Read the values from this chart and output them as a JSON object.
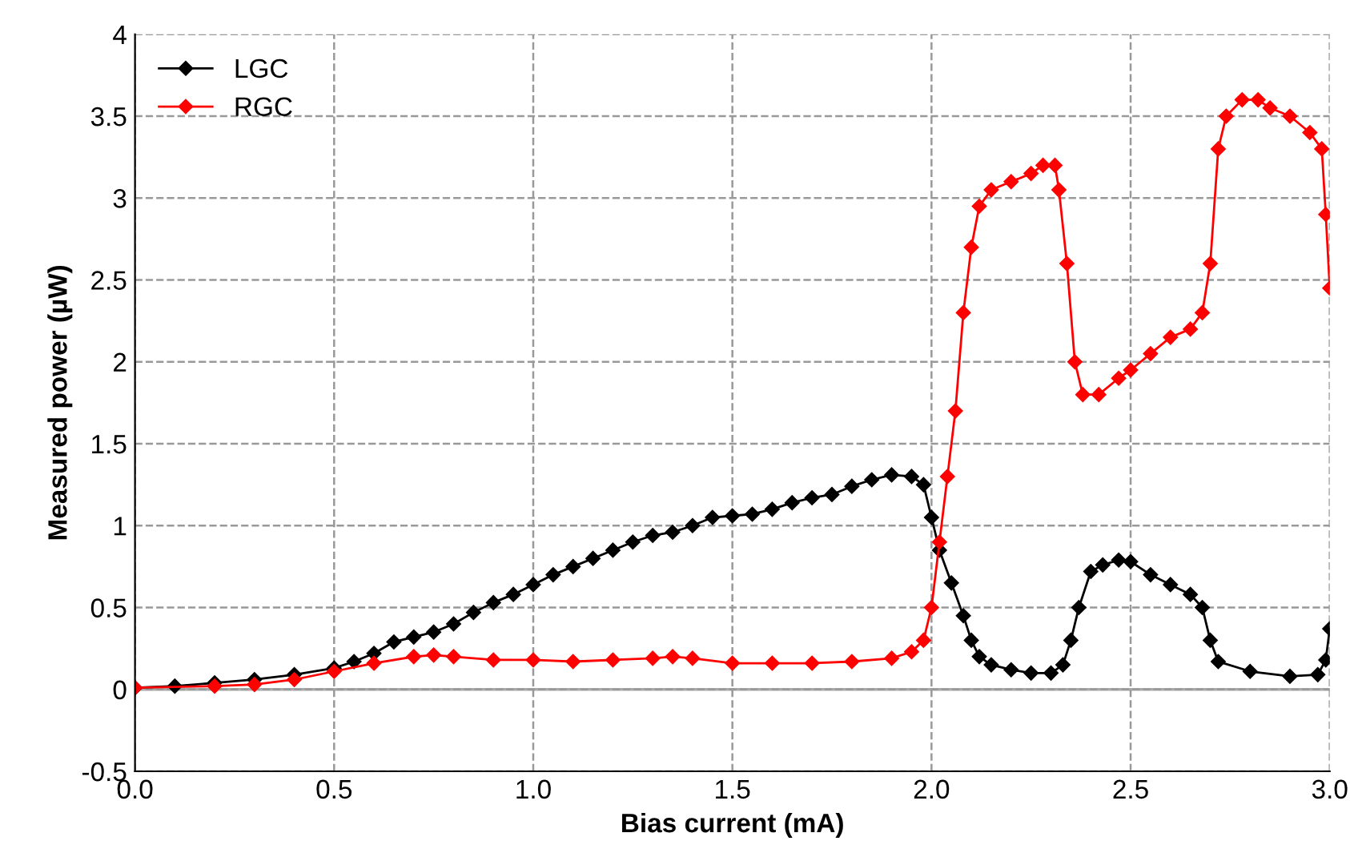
{
  "chart_data": {
    "type": "line",
    "xlabel": "Bias current (mA)",
    "ylabel": "Measured power (µW)",
    "xlim": [
      0,
      3
    ],
    "ylim": [
      -0.5,
      4
    ],
    "xticks": [
      {
        "value": 0,
        "label": "0.0"
      },
      {
        "value": 0.5,
        "label": "0.5"
      },
      {
        "value": 1,
        "label": "1.0"
      },
      {
        "value": 1.5,
        "label": "1.5"
      },
      {
        "value": 2,
        "label": "2.0"
      },
      {
        "value": 2.5,
        "label": "2.5"
      },
      {
        "value": 3,
        "label": "3.0"
      }
    ],
    "yticks": [
      {
        "value": -0.5,
        "label": "-0.5"
      },
      0,
      0.5,
      1,
      1.5,
      2,
      2.5,
      3,
      3.5,
      4
    ],
    "grid": true,
    "legend": "top left",
    "marker": "diamond",
    "line_style": "solid",
    "series": [
      {
        "name": "LGC",
        "color": "#000000",
        "x": [
          0,
          0.1,
          0.2,
          0.3,
          0.4,
          0.5,
          0.55,
          0.6,
          0.65,
          0.7,
          0.75,
          0.8,
          0.85,
          0.9,
          0.95,
          1.0,
          1.05,
          1.1,
          1.15,
          1.2,
          1.25,
          1.3,
          1.35,
          1.4,
          1.45,
          1.5,
          1.55,
          1.6,
          1.65,
          1.7,
          1.75,
          1.8,
          1.85,
          1.9,
          1.95,
          1.98,
          2.0,
          2.02,
          2.05,
          2.08,
          2.1,
          2.12,
          2.15,
          2.2,
          2.25,
          2.3,
          2.33,
          2.35,
          2.37,
          2.4,
          2.43,
          2.47,
          2.5,
          2.55,
          2.6,
          2.65,
          2.68,
          2.7,
          2.72,
          2.8,
          2.9,
          2.97,
          2.99,
          3.0
        ],
        "values": [
          0.01,
          0.02,
          0.04,
          0.06,
          0.09,
          0.13,
          0.17,
          0.22,
          0.29,
          0.32,
          0.35,
          0.4,
          0.47,
          0.53,
          0.58,
          0.64,
          0.7,
          0.75,
          0.8,
          0.85,
          0.9,
          0.94,
          0.96,
          1.0,
          1.05,
          1.06,
          1.07,
          1.1,
          1.14,
          1.17,
          1.19,
          1.24,
          1.28,
          1.31,
          1.3,
          1.25,
          1.05,
          0.85,
          0.65,
          0.45,
          0.3,
          0.2,
          0.15,
          0.12,
          0.1,
          0.1,
          0.15,
          0.3,
          0.5,
          0.72,
          0.76,
          0.79,
          0.78,
          0.7,
          0.64,
          0.58,
          0.5,
          0.3,
          0.17,
          0.11,
          0.08,
          0.09,
          0.18,
          0.37
        ]
      },
      {
        "name": "RGC",
        "color": "#ff0000",
        "x": [
          0,
          0.2,
          0.3,
          0.4,
          0.5,
          0.6,
          0.7,
          0.75,
          0.8,
          0.9,
          1.0,
          1.1,
          1.2,
          1.3,
          1.35,
          1.4,
          1.5,
          1.6,
          1.7,
          1.8,
          1.9,
          1.95,
          1.98,
          2.0,
          2.02,
          2.04,
          2.06,
          2.08,
          2.1,
          2.12,
          2.15,
          2.2,
          2.25,
          2.28,
          2.31,
          2.32,
          2.34,
          2.36,
          2.38,
          2.42,
          2.47,
          2.5,
          2.55,
          2.6,
          2.65,
          2.68,
          2.7,
          2.72,
          2.74,
          2.78,
          2.82,
          2.85,
          2.9,
          2.95,
          2.98,
          2.99,
          3.0
        ],
        "values": [
          0.01,
          0.02,
          0.03,
          0.06,
          0.11,
          0.16,
          0.2,
          0.21,
          0.2,
          0.18,
          0.18,
          0.17,
          0.18,
          0.19,
          0.2,
          0.19,
          0.16,
          0.16,
          0.16,
          0.17,
          0.19,
          0.23,
          0.3,
          0.5,
          0.9,
          1.3,
          1.7,
          2.3,
          2.7,
          2.95,
          3.05,
          3.1,
          3.15,
          3.2,
          3.2,
          3.05,
          2.6,
          2.0,
          1.8,
          1.8,
          1.9,
          1.95,
          2.05,
          2.15,
          2.2,
          2.3,
          2.6,
          3.3,
          3.5,
          3.6,
          3.6,
          3.55,
          3.5,
          3.4,
          3.3,
          2.9,
          2.45
        ]
      }
    ]
  }
}
